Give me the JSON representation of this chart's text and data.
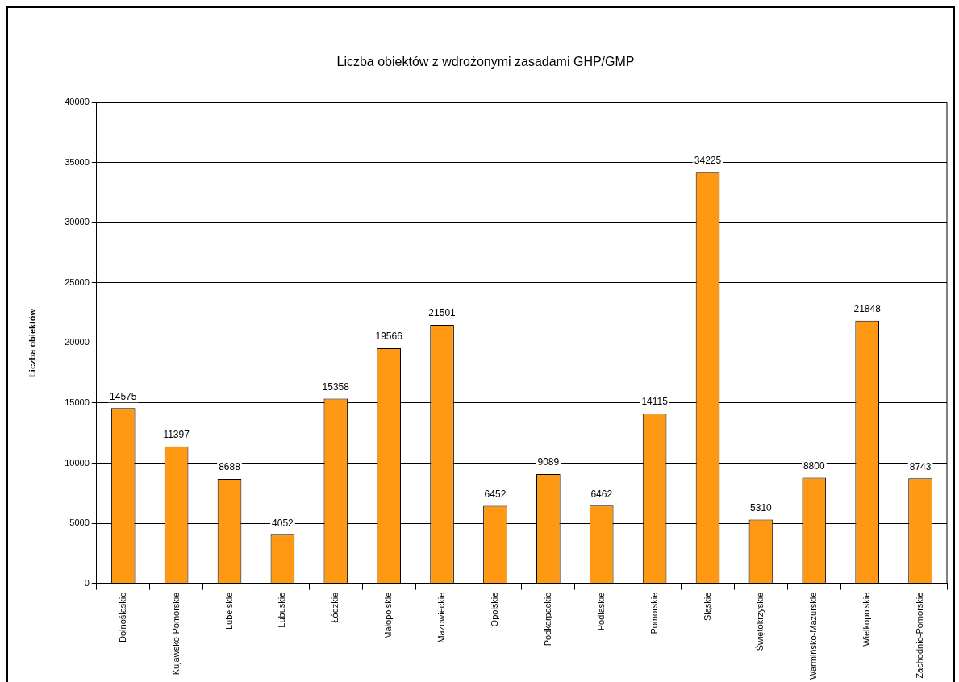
{
  "chart_data": {
    "type": "bar",
    "title": "Liczba obiektów z wdrożonymi zasadami GHP/GMP",
    "ylabel": "Liczba obiektów",
    "categories": [
      "Dolnośląskie",
      "Kujawsko-Pomorskie",
      "Lubelskie",
      "Lubuskie",
      "Łódzkie",
      "Małopolskie",
      "Mazowieckie",
      "Opolskie",
      "Podkarpackie",
      "Podlaskie",
      "Pomorskie",
      "Śląskie",
      "Świętokrzyskie",
      "Warmińsko-Mazurskie",
      "Wielkopolskie",
      "Zachodnio-Pomorskie"
    ],
    "values": [
      14575,
      11397,
      8688,
      4052,
      15358,
      19566,
      21501,
      6452,
      9089,
      6462,
      14115,
      34225,
      5310,
      8800,
      21848,
      8743
    ],
    "color": "#ff9914",
    "ylim": [
      0,
      40000
    ],
    "yticks": [
      0,
      5000,
      10000,
      15000,
      20000,
      25000,
      30000,
      35000,
      40000
    ],
    "grid": "y",
    "data_labels": true,
    "legend": false
  }
}
